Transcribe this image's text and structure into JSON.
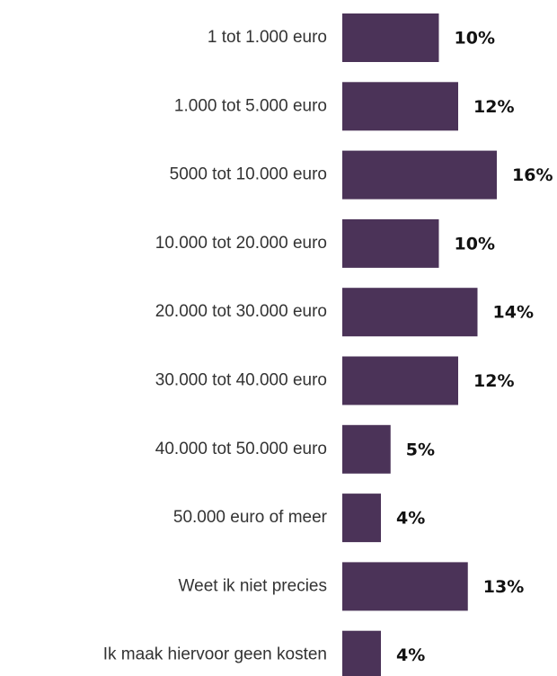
{
  "chart_data": {
    "type": "bar",
    "orientation": "horizontal",
    "categories": [
      "1 tot 1.000 euro",
      "1.000 tot 5.000 euro",
      "5000 tot 10.000 euro",
      "10.000 tot 20.000 euro",
      "20.000 tot 30.000 euro",
      "30.000 tot 40.000 euro",
      "40.000 tot 50.000 euro",
      "50.000 euro of meer",
      "Weet ik niet precies",
      "Ik maak hiervoor geen kosten"
    ],
    "values": [
      10,
      12,
      16,
      10,
      14,
      12,
      5,
      4,
      13,
      4
    ],
    "value_labels": [
      "10%",
      "12%",
      "16%",
      "10%",
      "14%",
      "12%",
      "5%",
      "4%",
      "13%",
      "4%"
    ],
    "color": "#4b3358"
  }
}
